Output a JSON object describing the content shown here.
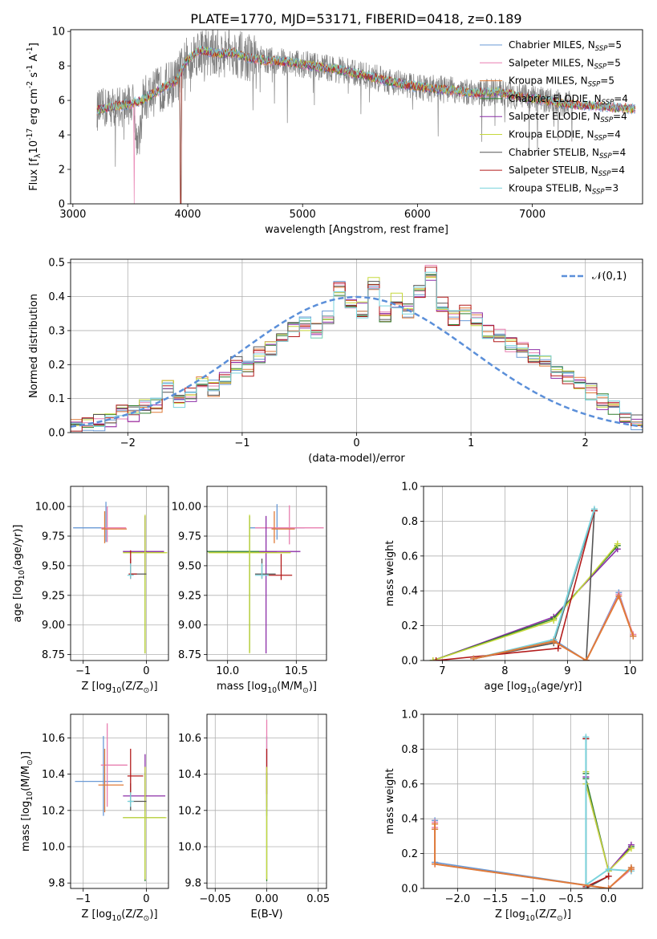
{
  "figure_title": "PLATE=1770, MJD=53171, FIBERID=0418, z=0.189",
  "colors": {
    "chabrier_miles": "#6a9ad6",
    "salpeter_miles": "#e87fb0",
    "kroupa_miles": "#e07b39",
    "chabrier_elodie": "#2f7f2f",
    "salpeter_elodie": "#8c2fa8",
    "kroupa_elodie": "#c6d83c",
    "chabrier_stelib": "#555555",
    "salpeter_stelib": "#b31b1b",
    "kroupa_stelib": "#7ad3dc",
    "spectrum_data": "#808080",
    "normal_curve": "#5b8fd9"
  },
  "legend_models": [
    {
      "label": "Chabrier MILES, N$_{SSP}$=5",
      "text_main": "Chabrier MILES, N",
      "text_sub": "SSP",
      "text_tail": "=5",
      "color_key": "chabrier_miles"
    },
    {
      "label": "Salpeter MILES, N$_{SSP}$=5",
      "text_main": "Salpeter MILES, N",
      "text_sub": "SSP",
      "text_tail": "=5",
      "color_key": "salpeter_miles"
    },
    {
      "label": "Kroupa MILES, N$_{SSP}$=5",
      "text_main": "Kroupa MILES, N",
      "text_sub": "SSP",
      "text_tail": "=5",
      "color_key": "kroupa_miles"
    },
    {
      "label": "Chabrier ELODIE, N$_{SSP}$=4",
      "text_main": "Chabrier ELODIE, N",
      "text_sub": "SSP",
      "text_tail": "=4",
      "color_key": "chabrier_elodie"
    },
    {
      "label": "Salpeter ELODIE, N$_{SSP}$=4",
      "text_main": "Salpeter ELODIE, N",
      "text_sub": "SSP",
      "text_tail": "=4",
      "color_key": "salpeter_elodie"
    },
    {
      "label": "Kroupa ELODIE, N$_{SSP}$=4",
      "text_main": "Kroupa ELODIE, N",
      "text_sub": "SSP",
      "text_tail": "=4",
      "color_key": "kroupa_elodie"
    },
    {
      "label": "Chabrier STELIB, N$_{SSP}$=4",
      "text_main": "Chabrier STELIB, N",
      "text_sub": "SSP",
      "text_tail": "=4",
      "color_key": "chabrier_stelib"
    },
    {
      "label": "Salpeter STELIB, N$_{SSP}$=4",
      "text_main": "Salpeter STELIB, N",
      "text_sub": "SSP",
      "text_tail": "=4",
      "color_key": "salpeter_stelib"
    },
    {
      "label": "Kroupa STELIB, N$_{SSP}$=3",
      "text_main": "Kroupa STELIB, N",
      "text_sub": "SSP",
      "text_tail": "=3",
      "color_key": "kroupa_stelib"
    }
  ],
  "chart_data": [
    {
      "id": "spectrum",
      "type": "line",
      "title": "PLATE=1770, MJD=53171, FIBERID=0418, z=0.189",
      "xlabel": "wavelength [Angstrom, rest frame]",
      "ylabel": "Flux [f$_\\lambda$10$^{-17}$ erg cm$^{-2}$ s$^{-1}$ A$^{-1}$]",
      "xlim": [
        2980,
        7960
      ],
      "ylim": [
        0,
        10.1
      ],
      "xticks": [
        3000,
        4000,
        5000,
        6000,
        7000
      ],
      "yticks": [
        0,
        2,
        4,
        6,
        8,
        10
      ],
      "grid": false,
      "legend": "upper right",
      "continuum_points": {
        "x": [
          3210,
          3300,
          3400,
          3500,
          3600,
          3700,
          3800,
          3900,
          3950,
          4000,
          4100,
          4200,
          4300,
          4400,
          4500,
          4700,
          4900,
          5100,
          5300,
          5500,
          5700,
          5900,
          6100,
          6300,
          6500,
          6700,
          6900,
          7100,
          7300,
          7500,
          7700,
          7900
        ],
        "y": [
          5.4,
          5.6,
          5.7,
          5.8,
          6.0,
          6.4,
          6.8,
          7.1,
          7.8,
          8.4,
          8.9,
          8.8,
          8.7,
          8.8,
          8.5,
          8.3,
          8.2,
          8.0,
          7.8,
          7.5,
          7.2,
          6.9,
          6.7,
          6.6,
          6.4,
          6.5,
          6.2,
          6.0,
          5.8,
          5.7,
          5.6,
          5.5
        ]
      },
      "data_range": [
        3210,
        7360
      ],
      "model_range": [
        3210,
        7900
      ]
    },
    {
      "id": "residual_hist",
      "type": "bar",
      "xlabel": "(data-model)/error",
      "ylabel": "Normed distribution",
      "xlim": [
        -2.5,
        2.5
      ],
      "ylim": [
        0,
        0.51
      ],
      "xticks": [
        -2,
        -1,
        0,
        1,
        2
      ],
      "yticks": [
        0.0,
        0.1,
        0.2,
        0.3,
        0.4,
        0.5
      ],
      "grid": true,
      "legend": "upper right",
      "legend_label": "$\\mathcal{N}(0,1)$",
      "bins": {
        "start": -2.5,
        "width": 0.1,
        "count": 50
      },
      "base_series": [
        0.02,
        0.022,
        0.03,
        0.04,
        0.06,
        0.055,
        0.075,
        0.08,
        0.14,
        0.09,
        0.11,
        0.15,
        0.13,
        0.16,
        0.2,
        0.19,
        0.23,
        0.25,
        0.27,
        0.3,
        0.32,
        0.3,
        0.34,
        0.42,
        0.38,
        0.36,
        0.44,
        0.35,
        0.39,
        0.36,
        0.41,
        0.47,
        0.38,
        0.34,
        0.35,
        0.33,
        0.3,
        0.29,
        0.26,
        0.24,
        0.22,
        0.22,
        0.18,
        0.16,
        0.14,
        0.12,
        0.09,
        0.07,
        0.05,
        0.03
      ],
      "normal_curve": {
        "mu": 0,
        "sigma": 1,
        "style": "dashed"
      }
    },
    {
      "id": "age_vs_Z",
      "type": "scatter",
      "xlabel": "Z [log$_{10}$(Z/Z$_\\odot$)]",
      "ylabel": "age  [log$_{10}$(age/yr)]",
      "xlim": [
        -1.2,
        0.35
      ],
      "ylim": [
        8.7,
        10.17
      ],
      "xticks": [
        -1,
        0
      ],
      "yticks": [
        8.75,
        9.0,
        9.25,
        9.5,
        9.75,
        10.0
      ],
      "grid": true,
      "points": [
        {
          "model": "chabrier_miles",
          "x": -0.64,
          "xerr": [
            0.52,
            0.0
          ],
          "y": 9.82,
          "yerr": [
            0.12,
            0.22
          ]
        },
        {
          "model": "salpeter_miles",
          "x": -0.62,
          "xerr": [
            0.1,
            0.3
          ],
          "y": 9.82,
          "yerr": [
            0.12,
            0.18
          ]
        },
        {
          "model": "kroupa_miles",
          "x": -0.66,
          "xerr": [
            0.05,
            0.35
          ],
          "y": 9.81,
          "yerr": [
            0.12,
            0.15
          ]
        },
        {
          "model": "chabrier_elodie",
          "x": -0.02,
          "xerr": [
            0.35,
            0.3
          ],
          "y": 9.62,
          "yerr": [
            0.86,
            0.3
          ]
        },
        {
          "model": "salpeter_elodie",
          "x": -0.02,
          "xerr": [
            0.35,
            0.3
          ],
          "y": 9.62,
          "yerr": [
            0.2,
            0.3
          ]
        },
        {
          "model": "kroupa_elodie",
          "x": -0.02,
          "xerr": [
            0.35,
            0.35
          ],
          "y": 9.61,
          "yerr": [
            0.85,
            0.32
          ]
        },
        {
          "model": "chabrier_stelib",
          "x": -0.25,
          "xerr": [
            0.0,
            0.25
          ],
          "y": 9.43,
          "yerr": [
            0.04,
            0.13
          ]
        },
        {
          "model": "salpeter_stelib",
          "x": -0.25,
          "xerr": [
            0.03,
            0.1
          ],
          "y": 9.43,
          "yerr": [
            0.04,
            0.2
          ]
        },
        {
          "model": "kroupa_stelib",
          "x": -0.25,
          "xerr": [
            0.05,
            0.05
          ],
          "y": 9.42,
          "yerr": [
            0.03,
            0.1
          ]
        }
      ]
    },
    {
      "id": "age_vs_mass",
      "type": "scatter",
      "xlabel": "mass [log$_{10}$(M/M$_\\odot$)]",
      "ylabel": "",
      "xlim": [
        9.85,
        10.72
      ],
      "ylim": [
        8.7,
        10.17
      ],
      "xticks": [
        10.0,
        10.5
      ],
      "yticks": [
        8.75,
        9.0,
        9.25,
        9.5,
        9.75,
        10.0
      ],
      "grid": true,
      "points": [
        {
          "model": "chabrier_miles",
          "x": 10.36,
          "xerr": [
            0.2,
            0.2
          ],
          "y": 9.82,
          "yerr": [
            0.1,
            0.2
          ]
        },
        {
          "model": "salpeter_miles",
          "x": 10.45,
          "xerr": [
            0.25,
            0.25
          ],
          "y": 9.82,
          "yerr": [
            0.14,
            0.19
          ]
        },
        {
          "model": "kroupa_miles",
          "x": 10.34,
          "xerr": [
            0.02,
            0.15
          ],
          "y": 9.81,
          "yerr": [
            0.12,
            0.15
          ]
        },
        {
          "model": "chabrier_elodie",
          "x": 10.16,
          "xerr": [
            0.33,
            0.2
          ],
          "y": 9.62,
          "yerr": [
            0.85,
            0.3
          ]
        },
        {
          "model": "salpeter_elodie",
          "x": 10.28,
          "xerr": [
            0.05,
            0.25
          ],
          "y": 9.62,
          "yerr": [
            0.86,
            0.3
          ]
        },
        {
          "model": "kroupa_elodie",
          "x": 10.16,
          "xerr": [
            0.3,
            0.3
          ],
          "y": 9.61,
          "yerr": [
            0.85,
            0.32
          ]
        },
        {
          "model": "chabrier_stelib",
          "x": 10.25,
          "xerr": [
            0.05,
            0.1
          ],
          "y": 9.43,
          "yerr": [
            0.04,
            0.13
          ]
        },
        {
          "model": "salpeter_stelib",
          "x": 10.39,
          "xerr": [
            0.1,
            0.08
          ],
          "y": 9.42,
          "yerr": [
            0.04,
            0.18
          ]
        },
        {
          "model": "kroupa_stelib",
          "x": 10.25,
          "xerr": [
            0.05,
            0.05
          ],
          "y": 9.42,
          "yerr": [
            0.03,
            0.1
          ]
        }
      ]
    },
    {
      "id": "weight_vs_age",
      "type": "line",
      "xlabel": "age  [log$_{10}$(age/yr)]",
      "ylabel": "mass weight",
      "xlim": [
        6.7,
        10.2
      ],
      "ylim": [
        0,
        1.0
      ],
      "xticks": [
        7,
        8,
        9,
        10
      ],
      "yticks": [
        0.0,
        0.2,
        0.4,
        0.6,
        0.8,
        1.0
      ],
      "grid": true,
      "series": [
        {
          "model": "chabrier_miles",
          "x": [
            7.5,
            8.78,
            9.3,
            9.82,
            10.05
          ],
          "y": [
            0.01,
            0.12,
            0.0,
            0.39,
            0.14
          ]
        },
        {
          "model": "salpeter_miles",
          "x": [
            7.5,
            8.78,
            9.3,
            9.82,
            10.05
          ],
          "y": [
            0.01,
            0.11,
            0.0,
            0.38,
            0.15
          ]
        },
        {
          "model": "salpeter_elodie",
          "x": [
            6.85,
            8.78,
            9.8
          ],
          "y": [
            0.0,
            0.25,
            0.64
          ]
        },
        {
          "model": "chabrier_elodie",
          "x": [
            6.85,
            8.78,
            9.8
          ],
          "y": [
            0.0,
            0.24,
            0.66
          ]
        },
        {
          "model": "kroupa_elodie",
          "x": [
            6.85,
            8.78,
            9.8
          ],
          "y": [
            0.0,
            0.23,
            0.67
          ]
        },
        {
          "model": "chabrier_stelib",
          "x": [
            7.5,
            8.78,
            9.43,
            9.3
          ],
          "y": [
            0.01,
            0.1,
            0.86,
            0.0
          ]
        },
        {
          "model": "salpeter_stelib",
          "x": [
            6.9,
            8.85,
            9.43
          ],
          "y": [
            0.0,
            0.07,
            0.86
          ]
        },
        {
          "model": "kroupa_stelib",
          "x": [
            7.5,
            8.78,
            9.43
          ],
          "y": [
            0.01,
            0.12,
            0.87
          ]
        },
        {
          "model": "kroupa_miles",
          "x": [
            7.5,
            8.78,
            9.3,
            9.82,
            10.05
          ],
          "y": [
            0.01,
            0.11,
            0.0,
            0.37,
            0.14
          ]
        }
      ]
    },
    {
      "id": "mass_vs_Z",
      "type": "scatter",
      "xlabel": "Z [log$_{10}$(Z/Z$_\\odot$)]",
      "ylabel": "mass [log$_{10}$(M/M$_\\odot$)]",
      "xlim": [
        -1.2,
        0.35
      ],
      "ylim": [
        9.77,
        10.73
      ],
      "xticks": [
        -1,
        0
      ],
      "yticks": [
        9.8,
        10.0,
        10.2,
        10.4,
        10.6
      ],
      "grid": true,
      "points": [
        {
          "model": "chabrier_miles",
          "x": -0.68,
          "xerr": [
            0.45,
            0.3
          ],
          "y": 10.36,
          "yerr": [
            0.19,
            0.25
          ]
        },
        {
          "model": "salpeter_miles",
          "x": -0.62,
          "xerr": [
            0.1,
            0.32
          ],
          "y": 10.45,
          "yerr": [
            0.23,
            0.23
          ]
        },
        {
          "model": "kroupa_miles",
          "x": -0.66,
          "xerr": [
            0.1,
            0.3
          ],
          "y": 10.34,
          "yerr": [
            0.15,
            0.2
          ]
        },
        {
          "model": "chabrier_elodie",
          "x": -0.02,
          "xerr": [
            0.35,
            0.32
          ],
          "y": 10.16,
          "yerr": [
            0.35,
            0.25
          ]
        },
        {
          "model": "salpeter_elodie",
          "x": -0.02,
          "xerr": [
            0.35,
            0.32
          ],
          "y": 10.28,
          "yerr": [
            0.08,
            0.23
          ]
        },
        {
          "model": "kroupa_elodie",
          "x": -0.02,
          "xerr": [
            0.35,
            0.34
          ],
          "y": 10.16,
          "yerr": [
            0.34,
            0.28
          ]
        },
        {
          "model": "chabrier_stelib",
          "x": -0.25,
          "xerr": [
            0.03,
            0.25
          ],
          "y": 10.25,
          "yerr": [
            0.05,
            0.1
          ]
        },
        {
          "model": "salpeter_stelib",
          "x": -0.25,
          "xerr": [
            0.05,
            0.2
          ],
          "y": 10.39,
          "yerr": [
            0.1,
            0.15
          ]
        },
        {
          "model": "kroupa_stelib",
          "x": -0.25,
          "xerr": [
            0.05,
            0.05
          ],
          "y": 10.25,
          "yerr": [
            0.03,
            0.05
          ]
        }
      ]
    },
    {
      "id": "mass_vs_ebv",
      "type": "scatter",
      "xlabel": "E(B-V)",
      "ylabel": "",
      "xlim": [
        -0.058,
        0.058
      ],
      "ylim": [
        9.77,
        10.73
      ],
      "xticks": [
        -0.05,
        0.0,
        0.05
      ],
      "yticks": [
        9.8,
        10.0,
        10.2,
        10.4,
        10.6
      ],
      "grid": true,
      "points": [
        {
          "model": "chabrier_miles",
          "x": 0.0,
          "y": 10.36,
          "yerr": [
            0.19,
            0.25
          ]
        },
        {
          "model": "salpeter_miles",
          "x": 0.0,
          "y": 10.45,
          "yerr": [
            0.23,
            0.25
          ]
        },
        {
          "model": "salpeter_stelib",
          "x": 0.0,
          "y": 10.39,
          "yerr": [
            0.1,
            0.15
          ]
        },
        {
          "model": "chabrier_elodie",
          "x": 0.0,
          "y": 10.16,
          "yerr": [
            0.35,
            0.25
          ]
        },
        {
          "model": "kroupa_elodie",
          "x": 0.0,
          "y": 10.16,
          "yerr": [
            0.34,
            0.28
          ]
        }
      ]
    },
    {
      "id": "weight_vs_Z",
      "type": "line",
      "xlabel": "Z [log$_{10}$(Z/Z$_\\odot$)]",
      "ylabel": "mass weight",
      "xlim": [
        -2.45,
        0.45
      ],
      "ylim": [
        0,
        1.0
      ],
      "xticks": [
        -2.0,
        -1.5,
        -1.0,
        -0.5,
        0.0
      ],
      "yticks": [
        0.0,
        0.2,
        0.4,
        0.6,
        0.8,
        1.0
      ],
      "grid": true,
      "series": [
        {
          "model": "chabrier_miles",
          "x": [
            -2.3,
            -2.3,
            -2.3,
            0.0,
            0.3,
            0.3
          ],
          "y": [
            0.39,
            0.34,
            0.15,
            0.0,
            0.12,
            0.1
          ]
        },
        {
          "model": "salpeter_miles",
          "x": [
            -2.3,
            -2.3,
            -2.3,
            0.0,
            0.3,
            0.3
          ],
          "y": [
            0.38,
            0.35,
            0.14,
            0.0,
            0.11,
            0.1
          ]
        },
        {
          "model": "chabrier_elodie",
          "x": [
            -0.3,
            -0.3,
            0.0,
            0.3
          ],
          "y": [
            0.66,
            0.63,
            0.1,
            0.24
          ]
        },
        {
          "model": "salpeter_elodie",
          "x": [
            -0.3,
            -0.3,
            0.0,
            0.3
          ],
          "y": [
            0.64,
            0.6,
            0.1,
            0.25
          ]
        },
        {
          "model": "kroupa_elodie",
          "x": [
            -0.3,
            -0.3,
            0.0,
            0.3
          ],
          "y": [
            0.67,
            0.6,
            0.1,
            0.23
          ]
        },
        {
          "model": "chabrier_stelib",
          "x": [
            -0.3,
            -0.3,
            0.0
          ],
          "y": [
            0.86,
            0.0,
            0.07
          ]
        },
        {
          "model": "salpeter_stelib",
          "x": [
            -0.3,
            -0.3,
            0.0
          ],
          "y": [
            0.86,
            0.01,
            0.07
          ]
        },
        {
          "model": "kroupa_stelib",
          "x": [
            -0.3,
            -0.3,
            0.0,
            0.3
          ],
          "y": [
            0.87,
            0.02,
            0.11,
            0.1
          ]
        },
        {
          "model": "kroupa_miles",
          "x": [
            -2.3,
            -2.3,
            -2.3,
            0.0,
            0.3,
            0.3
          ],
          "y": [
            0.37,
            0.34,
            0.14,
            0.0,
            0.12,
            0.11
          ]
        }
      ]
    }
  ]
}
